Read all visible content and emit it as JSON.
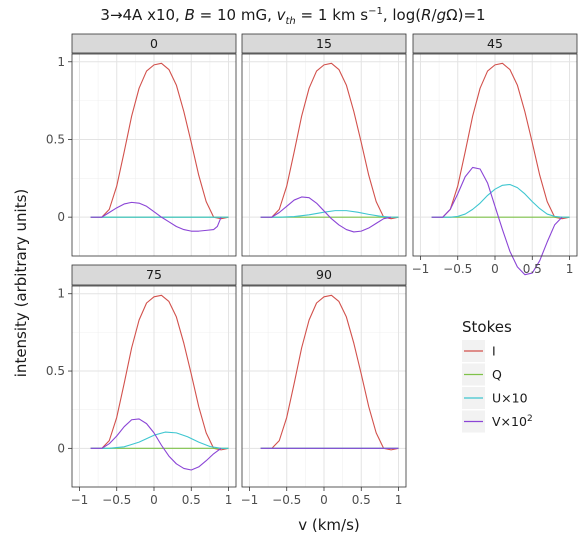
{
  "chart_data": {
    "type": "line",
    "title_parts": {
      "prefix": "3→4A x10, ",
      "b_symbol": "B",
      "b_text": " = 10 mG, ",
      "v_symbol": "v",
      "v_sub": "th",
      "v_text": " = 1 km s",
      "v_sup": "−1",
      "log_text": ", log(",
      "r_symbol": "R",
      "slash": "/",
      "g_symbol": "g",
      "tail": "Ω)=1"
    },
    "xlabel": "v (km/s)",
    "ylabel": "intensity (arbitrary units)",
    "x_ticks": [
      -1,
      -0.5,
      0,
      0.5,
      1
    ],
    "x_tick_labels": [
      "−1",
      "−0.5",
      "0",
      "0.5",
      "1"
    ],
    "y_ticks": [
      0,
      0.5,
      1
    ],
    "y_tick_labels": [
      "0",
      "0.5",
      "1"
    ],
    "xlim": [
      -1.1,
      1.1
    ],
    "ylim": [
      -0.25,
      1.05
    ],
    "legend": {
      "title": "Stokes",
      "placement": "right",
      "entries": [
        {
          "label": "I",
          "color": "#d2514c"
        },
        {
          "label": "Q",
          "color": "#7fc24a"
        },
        {
          "label": "U×10",
          "color": "#3ec6d0"
        },
        {
          "label": "V×10",
          "sup": "2",
          "color": "#8b45d6"
        }
      ]
    },
    "panels": [
      {
        "label": "0",
        "series": {
          "I": [
            [
              -0.85,
              0
            ],
            [
              -0.7,
              0
            ],
            [
              -0.6,
              0.05
            ],
            [
              -0.5,
              0.2
            ],
            [
              -0.4,
              0.42
            ],
            [
              -0.3,
              0.65
            ],
            [
              -0.2,
              0.83
            ],
            [
              -0.1,
              0.94
            ],
            [
              0,
              0.98
            ],
            [
              0.1,
              0.99
            ],
            [
              0.2,
              0.95
            ],
            [
              0.3,
              0.85
            ],
            [
              0.4,
              0.68
            ],
            [
              0.5,
              0.48
            ],
            [
              0.6,
              0.27
            ],
            [
              0.7,
              0.1
            ],
            [
              0.8,
              0.0
            ],
            [
              0.9,
              -0.01
            ],
            [
              1.0,
              0
            ]
          ],
          "Q": [
            [
              -0.85,
              0
            ],
            [
              1.0,
              0
            ]
          ],
          "U": [
            [
              -0.85,
              0
            ],
            [
              1.0,
              0
            ]
          ],
          "V": [
            [
              -0.85,
              0
            ],
            [
              -0.7,
              0
            ],
            [
              -0.6,
              0.03
            ],
            [
              -0.5,
              0.06
            ],
            [
              -0.4,
              0.085
            ],
            [
              -0.3,
              0.095
            ],
            [
              -0.2,
              0.09
            ],
            [
              -0.1,
              0.07
            ],
            [
              0,
              0.035
            ],
            [
              0.1,
              0.0
            ],
            [
              0.2,
              -0.03
            ],
            [
              0.3,
              -0.06
            ],
            [
              0.4,
              -0.08
            ],
            [
              0.5,
              -0.09
            ],
            [
              0.6,
              -0.09
            ],
            [
              0.7,
              -0.085
            ],
            [
              0.8,
              -0.08
            ],
            [
              0.85,
              -0.06
            ],
            [
              0.9,
              0
            ]
          ]
        }
      },
      {
        "label": "15",
        "series": {
          "I": [
            [
              -0.85,
              0
            ],
            [
              -0.7,
              0
            ],
            [
              -0.6,
              0.05
            ],
            [
              -0.5,
              0.2
            ],
            [
              -0.4,
              0.42
            ],
            [
              -0.3,
              0.65
            ],
            [
              -0.2,
              0.83
            ],
            [
              -0.1,
              0.94
            ],
            [
              0,
              0.98
            ],
            [
              0.1,
              0.99
            ],
            [
              0.2,
              0.95
            ],
            [
              0.3,
              0.85
            ],
            [
              0.4,
              0.68
            ],
            [
              0.5,
              0.48
            ],
            [
              0.6,
              0.27
            ],
            [
              0.7,
              0.1
            ],
            [
              0.8,
              0.0
            ],
            [
              0.9,
              -0.01
            ],
            [
              1.0,
              0
            ]
          ],
          "Q": [
            [
              -0.85,
              0
            ],
            [
              1.0,
              0
            ]
          ],
          "U": [
            [
              -0.85,
              0
            ],
            [
              -0.6,
              0
            ],
            [
              -0.4,
              0.004
            ],
            [
              -0.2,
              0.015
            ],
            [
              0,
              0.032
            ],
            [
              0.15,
              0.042
            ],
            [
              0.3,
              0.042
            ],
            [
              0.45,
              0.032
            ],
            [
              0.6,
              0.018
            ],
            [
              0.75,
              0.006
            ],
            [
              0.9,
              0
            ],
            [
              1.0,
              0
            ]
          ],
          "V": [
            [
              -0.85,
              0
            ],
            [
              -0.7,
              0
            ],
            [
              -0.6,
              0.03
            ],
            [
              -0.5,
              0.07
            ],
            [
              -0.4,
              0.11
            ],
            [
              -0.3,
              0.13
            ],
            [
              -0.2,
              0.125
            ],
            [
              -0.1,
              0.09
            ],
            [
              0,
              0.04
            ],
            [
              0.1,
              -0.01
            ],
            [
              0.2,
              -0.05
            ],
            [
              0.3,
              -0.08
            ],
            [
              0.4,
              -0.095
            ],
            [
              0.5,
              -0.09
            ],
            [
              0.6,
              -0.07
            ],
            [
              0.7,
              -0.04
            ],
            [
              0.8,
              -0.01
            ],
            [
              0.9,
              0
            ]
          ]
        }
      },
      {
        "label": "45",
        "series": {
          "I": [
            [
              -0.85,
              0
            ],
            [
              -0.7,
              0
            ],
            [
              -0.6,
              0.05
            ],
            [
              -0.5,
              0.2
            ],
            [
              -0.4,
              0.42
            ],
            [
              -0.3,
              0.65
            ],
            [
              -0.2,
              0.83
            ],
            [
              -0.1,
              0.94
            ],
            [
              0,
              0.98
            ],
            [
              0.1,
              0.99
            ],
            [
              0.2,
              0.95
            ],
            [
              0.3,
              0.85
            ],
            [
              0.4,
              0.68
            ],
            [
              0.5,
              0.48
            ],
            [
              0.6,
              0.27
            ],
            [
              0.7,
              0.1
            ],
            [
              0.8,
              0.0
            ],
            [
              0.9,
              -0.01
            ],
            [
              1.0,
              0
            ]
          ],
          "Q": [
            [
              -0.85,
              0
            ],
            [
              1.0,
              0
            ]
          ],
          "U": [
            [
              -0.85,
              0
            ],
            [
              -0.6,
              0
            ],
            [
              -0.5,
              0.005
            ],
            [
              -0.4,
              0.02
            ],
            [
              -0.3,
              0.05
            ],
            [
              -0.2,
              0.09
            ],
            [
              -0.1,
              0.14
            ],
            [
              0,
              0.18
            ],
            [
              0.1,
              0.205
            ],
            [
              0.2,
              0.21
            ],
            [
              0.3,
              0.19
            ],
            [
              0.4,
              0.15
            ],
            [
              0.5,
              0.1
            ],
            [
              0.6,
              0.055
            ],
            [
              0.7,
              0.02
            ],
            [
              0.8,
              0.005
            ],
            [
              0.9,
              0
            ],
            [
              1.0,
              0
            ]
          ],
          "V": [
            [
              -0.85,
              0
            ],
            [
              -0.7,
              0
            ],
            [
              -0.6,
              0.05
            ],
            [
              -0.5,
              0.15
            ],
            [
              -0.4,
              0.26
            ],
            [
              -0.3,
              0.32
            ],
            [
              -0.2,
              0.31
            ],
            [
              -0.1,
              0.22
            ],
            [
              0,
              0.07
            ],
            [
              0.1,
              -0.08
            ],
            [
              0.2,
              -0.22
            ],
            [
              0.3,
              -0.32
            ],
            [
              0.4,
              -0.37
            ],
            [
              0.5,
              -0.36
            ],
            [
              0.6,
              -0.28
            ],
            [
              0.7,
              -0.16
            ],
            [
              0.8,
              -0.05
            ],
            [
              0.9,
              0
            ]
          ]
        }
      },
      {
        "label": "75",
        "series": {
          "I": [
            [
              -0.85,
              0
            ],
            [
              -0.7,
              0
            ],
            [
              -0.6,
              0.05
            ],
            [
              -0.5,
              0.2
            ],
            [
              -0.4,
              0.42
            ],
            [
              -0.3,
              0.65
            ],
            [
              -0.2,
              0.83
            ],
            [
              -0.1,
              0.94
            ],
            [
              0,
              0.98
            ],
            [
              0.1,
              0.99
            ],
            [
              0.2,
              0.95
            ],
            [
              0.3,
              0.85
            ],
            [
              0.4,
              0.68
            ],
            [
              0.5,
              0.48
            ],
            [
              0.6,
              0.27
            ],
            [
              0.7,
              0.1
            ],
            [
              0.8,
              0.0
            ],
            [
              0.9,
              -0.01
            ],
            [
              1.0,
              0
            ]
          ],
          "Q": [
            [
              -0.85,
              0
            ],
            [
              1.0,
              0
            ]
          ],
          "U": [
            [
              -0.85,
              0
            ],
            [
              -0.6,
              0
            ],
            [
              -0.4,
              0.01
            ],
            [
              -0.2,
              0.04
            ],
            [
              0,
              0.085
            ],
            [
              0.15,
              0.105
            ],
            [
              0.3,
              0.1
            ],
            [
              0.45,
              0.075
            ],
            [
              0.6,
              0.04
            ],
            [
              0.75,
              0.012
            ],
            [
              0.9,
              0
            ],
            [
              1.0,
              0
            ]
          ],
          "V": [
            [
              -0.85,
              0
            ],
            [
              -0.7,
              0
            ],
            [
              -0.6,
              0.03
            ],
            [
              -0.5,
              0.08
            ],
            [
              -0.4,
              0.14
            ],
            [
              -0.3,
              0.185
            ],
            [
              -0.2,
              0.19
            ],
            [
              -0.1,
              0.16
            ],
            [
              0,
              0.1
            ],
            [
              0.1,
              0.02
            ],
            [
              0.2,
              -0.05
            ],
            [
              0.3,
              -0.1
            ],
            [
              0.4,
              -0.13
            ],
            [
              0.5,
              -0.14
            ],
            [
              0.6,
              -0.12
            ],
            [
              0.7,
              -0.08
            ],
            [
              0.8,
              -0.035
            ],
            [
              0.9,
              0
            ]
          ]
        }
      },
      {
        "label": "90",
        "series": {
          "I": [
            [
              -0.85,
              0
            ],
            [
              -0.7,
              0
            ],
            [
              -0.6,
              0.05
            ],
            [
              -0.5,
              0.2
            ],
            [
              -0.4,
              0.42
            ],
            [
              -0.3,
              0.65
            ],
            [
              -0.2,
              0.83
            ],
            [
              -0.1,
              0.94
            ],
            [
              0,
              0.98
            ],
            [
              0.1,
              0.99
            ],
            [
              0.2,
              0.95
            ],
            [
              0.3,
              0.85
            ],
            [
              0.4,
              0.68
            ],
            [
              0.5,
              0.48
            ],
            [
              0.6,
              0.27
            ],
            [
              0.7,
              0.1
            ],
            [
              0.8,
              0.0
            ],
            [
              0.9,
              -0.01
            ],
            [
              1.0,
              0
            ]
          ],
          "Q": [
            [
              -0.85,
              0
            ],
            [
              1.0,
              0
            ]
          ],
          "U": [
            [
              -0.85,
              0
            ],
            [
              1.0,
              0
            ]
          ],
          "V": [
            [
              -0.85,
              0
            ],
            [
              1.0,
              0
            ]
          ]
        }
      }
    ]
  }
}
